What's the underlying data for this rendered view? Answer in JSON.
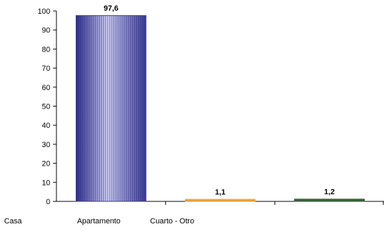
{
  "chart_data": {
    "type": "bar",
    "title": "",
    "xlabel": "",
    "ylabel": "",
    "categories": [
      "Casa",
      "Apartamento",
      "Cuarto - Otro"
    ],
    "values": [
      97.6,
      1.1,
      1.2
    ],
    "data_labels": [
      "97,6",
      "1,1",
      "1,2"
    ],
    "ylim": [
      0,
      100
    ],
    "yticks": [
      0,
      10,
      20,
      30,
      40,
      50,
      60,
      70,
      80,
      90,
      100
    ],
    "grid": false,
    "legend": "none",
    "colors": [
      "#3c3c9a",
      "#f0a030",
      "#2f5a2f"
    ]
  }
}
